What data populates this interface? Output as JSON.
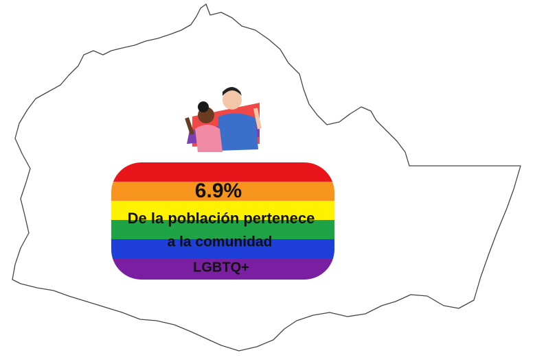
{
  "stat": {
    "value": "6.9%",
    "lines": [
      "De la población pertenece",
      "a la comunidad",
      "LGBTQ+"
    ]
  }
}
